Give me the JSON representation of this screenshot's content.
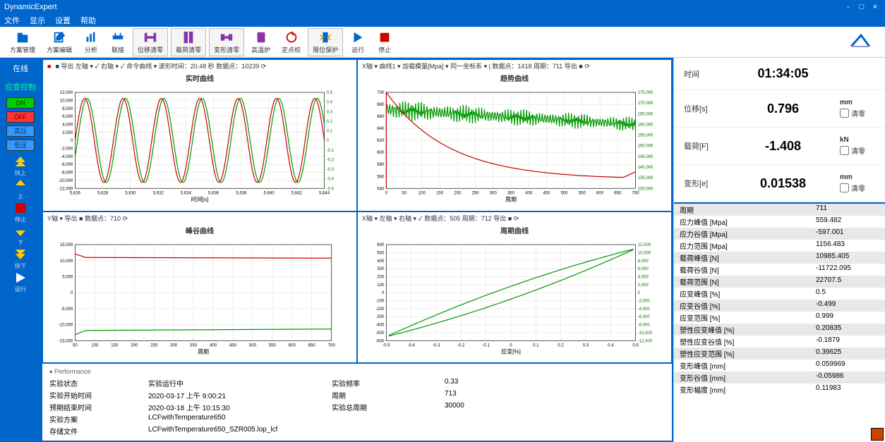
{
  "colors": {
    "primary": "#0066cc",
    "series_red": "#cc0000",
    "series_green": "#009900",
    "grid": "#dddddd",
    "bg": "#ffffff"
  },
  "titlebar": {
    "title": "DynamicExpert"
  },
  "menubar": [
    "文件",
    "显示",
    "设置",
    "帮助"
  ],
  "toolbar": {
    "items": [
      {
        "name": "scheme-manage",
        "label": "方案管理",
        "icon": "folder",
        "color": "#0066cc"
      },
      {
        "name": "scheme-edit",
        "label": "方案编辑",
        "icon": "edit",
        "color": "#0066cc"
      },
      {
        "name": "analysis",
        "label": "分析",
        "icon": "bars",
        "color": "#0066cc"
      },
      {
        "name": "connect",
        "label": "联接",
        "icon": "plug",
        "color": "#0066cc"
      },
      {
        "name": "axial-clear",
        "label": "位移清零",
        "icon": "dumbbell",
        "color": "#8833aa",
        "boxed": true
      },
      {
        "name": "load-clear",
        "label": "载荷清零",
        "icon": "clamp",
        "color": "#8833aa",
        "boxed": true
      },
      {
        "name": "deform-clear",
        "label": "变形清零",
        "icon": "extens",
        "color": "#8833aa",
        "boxed": true
      },
      {
        "name": "furnace",
        "label": "高温炉",
        "icon": "furnace",
        "color": "#8833aa"
      },
      {
        "name": "origin",
        "label": "定点校",
        "icon": "target",
        "color": "#cc0000"
      },
      {
        "name": "limit",
        "label": "限位保护",
        "icon": "limit",
        "color": "#0066cc",
        "boxed": true
      },
      {
        "name": "run",
        "label": "运行",
        "icon": "play",
        "color": "#0066cc"
      },
      {
        "name": "stop",
        "label": "停止",
        "icon": "stop",
        "color": "#cc0000"
      }
    ]
  },
  "sidebar": {
    "status": "在线",
    "control_mode": "应变控制",
    "buttons": {
      "on": "ON",
      "off": "OFF",
      "high": "高压",
      "low": "低压"
    },
    "arrows": [
      {
        "name": "fast-up",
        "label": "快上",
        "color": "#ffcc00",
        "double": true
      },
      {
        "name": "up",
        "label": "上",
        "color": "#ffcc00",
        "double": false
      },
      {
        "name": "stop-move",
        "label": "停止",
        "color": "#cc0000",
        "shape": "square"
      },
      {
        "name": "down",
        "label": "下",
        "color": "#ffcc00",
        "double": false,
        "dir": "down"
      },
      {
        "name": "fast-down",
        "label": "快下",
        "color": "#ffcc00",
        "double": true,
        "dir": "down"
      },
      {
        "name": "run-side",
        "label": "运行",
        "color": "#ffffff",
        "shape": "play"
      }
    ]
  },
  "charts": {
    "c1": {
      "header": "■ 导出  左轴 ▾ ✓  右轴 ▾ ✓  命令曲线 ▾    波形时间：20.48 秒 数据点：10239 ⟳",
      "title": "实时曲线",
      "xlabel": "时间[s]",
      "ylabel_left": "载荷[kN]",
      "ylabel_right": "应变[%]",
      "x_ticks": [
        "5,626",
        "5,628",
        "5,630",
        "5,632",
        "5,634",
        "5,636",
        "5,638",
        "5,640",
        "5,642",
        "5,644"
      ],
      "y_left_ticks": [
        "12,000",
        "10,000",
        "8,000",
        "6,000",
        "4,000",
        "2,000",
        "0",
        "-2,000",
        "-4,000",
        "-6,000",
        "-8,000",
        "-10,000",
        "-12,000"
      ],
      "y_right_ticks": [
        "0.5",
        "0.4",
        "0.3",
        "0.2",
        "0.1",
        "0",
        "-0.1",
        "-0.2",
        "-0.3",
        "-0.4",
        "-0.5"
      ],
      "cycles": 6.5,
      "amp_red": 10500,
      "amp_green": 0.48,
      "y_left_range": [
        -12000,
        12000
      ],
      "y_right_range": [
        -0.6,
        0.6
      ]
    },
    "c2": {
      "header": "X轴 ▾  曲线1 ▾ 加载模量[Mpa] ▾  同一坐标系 ▾  | 数据点：1418 周期：711 导出 ■  ⟳",
      "title": "趋势曲线",
      "xlabel": "周期",
      "x_ticks": [
        "0",
        "50",
        "100",
        "150",
        "200",
        "250",
        "300",
        "350",
        "400",
        "450",
        "500",
        "550",
        "600",
        "650",
        "700"
      ],
      "y_left_ticks": [
        "700",
        "680",
        "660",
        "640",
        "620",
        "600",
        "580",
        "560",
        "540"
      ],
      "y_right_ticks": [
        "175,000",
        "170,000",
        "165,000",
        "160,000",
        "155,000",
        "150,000",
        "145,000",
        "140,000",
        "135,000",
        "130,000"
      ],
      "y_left_range": [
        540,
        700
      ],
      "y_right_range": [
        130000,
        175000
      ],
      "red_start": 700,
      "red_end": 555,
      "green_mean": 160000,
      "green_noise": 6000
    },
    "c3": {
      "header": "Y轴 ▾ 导出 ■  数据点：710 ⟳",
      "title": "峰谷曲线",
      "xlabel": "周期",
      "x_ticks": [
        "50",
        "100",
        "150",
        "200",
        "250",
        "300",
        "350",
        "400",
        "450",
        "500",
        "550",
        "600",
        "650",
        "700"
      ],
      "y_ticks": [
        "15,000",
        "10,000",
        "5,000",
        "0",
        "-5,000",
        "-10,000",
        "-15,000"
      ],
      "y_range": [
        -15000,
        15000
      ],
      "red_val": 11000,
      "green_val": -11800
    },
    "c4": {
      "header": "X轴 ▾ 左轴 ▾ 右轴 ▾ ✓  数据点：505 周期：712 导出 ■  ⟳",
      "title": "周期曲线",
      "xlabel": "应变[%]",
      "x_ticks": [
        "-0.5",
        "-0.4",
        "-0.3",
        "-0.2",
        "-0.1",
        "0",
        "0.1",
        "0.2",
        "0.3",
        "0.4",
        "0.5"
      ],
      "y_left_ticks": [
        "600",
        "500",
        "400",
        "300",
        "200",
        "100",
        "0",
        "-100",
        "-200",
        "-300",
        "-400",
        "-500",
        "-600"
      ],
      "y_right_ticks": [
        "12,000",
        "10,000",
        "8,000",
        "6,000",
        "4,000",
        "2,000",
        "0",
        "-2,000",
        "-4,000",
        "-6,000",
        "-8,000",
        "-10,000",
        "-12,000"
      ],
      "y_range": [
        -600,
        600
      ],
      "x_range": [
        -0.5,
        0.5
      ]
    }
  },
  "performance": {
    "header": "♦ Performance",
    "rows": [
      [
        "实验状态",
        "实验运行中",
        "实验频率",
        "0.33"
      ],
      [
        "实验开始时间",
        "2020-03-17 上午 9:00:21",
        "周期",
        "713"
      ],
      [
        "预期结束时间",
        "2020-03-18 上午 10:15:30",
        "实验总周期",
        "30000"
      ],
      [
        "实验方案",
        "LCFwithTemperature650",
        "",
        ""
      ],
      [
        "存储文件",
        "LCFwithTemperature650_SZR005.lop_lcf",
        "",
        ""
      ]
    ]
  },
  "metrics": [
    {
      "label": "时间",
      "value": "01:34:05",
      "unit": "",
      "zero": false
    },
    {
      "label": "位移[s]",
      "value": "0.796",
      "unit": "mm",
      "zero": true
    },
    {
      "label": "载荷[F]",
      "value": "-1.408",
      "unit": "kN",
      "zero": true
    },
    {
      "label": "变形[e]",
      "value": "0.01538",
      "unit": "mm",
      "zero": true
    }
  ],
  "zero_label": "清零",
  "data_table": [
    [
      "周期",
      "711"
    ],
    [
      "应力峰值 [Mpa]",
      "559.482"
    ],
    [
      "应力谷值 [Mpa]",
      "-597.001"
    ],
    [
      "应力范围 [Mpa]",
      "1156.483"
    ],
    [
      "载荷峰值 [N]",
      "10985.405"
    ],
    [
      "载荷谷值 [N]",
      "-11722.095"
    ],
    [
      "载荷范围 [N]",
      "22707.5"
    ],
    [
      "应变峰值 [%]",
      "0.5"
    ],
    [
      "应变谷值 [%]",
      "-0.499"
    ],
    [
      "应变范围 [%]",
      "0.999"
    ],
    [
      "塑性应变峰值 [%]",
      "0.20835"
    ],
    [
      "塑性应变谷值 [%]",
      "-0.1879"
    ],
    [
      "塑性应变范围 [%]",
      "0.39625"
    ],
    [
      "变形峰值 [mm]",
      "0.059969"
    ],
    [
      "变形谷值 [mm]",
      "-0.05986"
    ],
    [
      "变形幅度 [mm]",
      "0.11983"
    ]
  ]
}
